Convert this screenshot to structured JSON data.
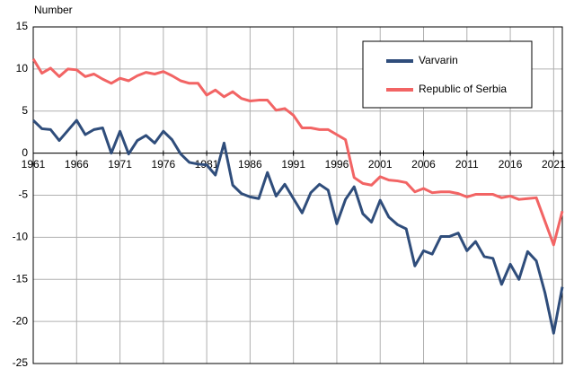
{
  "chart_data": {
    "type": "line",
    "y_label": "Number",
    "x": [
      1961,
      1962,
      1963,
      1964,
      1965,
      1966,
      1967,
      1968,
      1969,
      1970,
      1971,
      1972,
      1973,
      1974,
      1975,
      1976,
      1977,
      1978,
      1979,
      1980,
      1981,
      1982,
      1983,
      1984,
      1985,
      1986,
      1987,
      1988,
      1989,
      1990,
      1991,
      1992,
      1993,
      1994,
      1995,
      1996,
      1997,
      1998,
      1999,
      2000,
      2001,
      2002,
      2003,
      2004,
      2005,
      2006,
      2007,
      2008,
      2009,
      2010,
      2011,
      2012,
      2013,
      2014,
      2015,
      2016,
      2017,
      2018,
      2019,
      2020,
      2021,
      2022
    ],
    "series": [
      {
        "name": "Varvarin",
        "color": "#2f4d7b",
        "values": [
          3.9,
          2.9,
          2.8,
          1.5,
          2.7,
          3.9,
          2.2,
          2.8,
          3.0,
          0.0,
          2.6,
          -0.1,
          1.5,
          2.1,
          1.2,
          2.6,
          1.6,
          -0.1,
          -1.1,
          -1.3,
          -1.4,
          -2.6,
          1.2,
          -3.8,
          -4.8,
          -5.2,
          -5.4,
          -2.3,
          -5.1,
          -3.7,
          -5.4,
          -7.1,
          -4.7,
          -3.7,
          -4.4,
          -8.4,
          -5.5,
          -4.0,
          -7.2,
          -8.2,
          -5.6,
          -7.6,
          -8.5,
          -9.0,
          -13.4,
          -11.6,
          -12.0,
          -9.9,
          -9.9,
          -9.5,
          -11.6,
          -10.5,
          -12.3,
          -12.5,
          -15.6,
          -13.2,
          -15.0,
          -11.7,
          -12.8,
          -16.6,
          -21.4,
          -15.9
        ]
      },
      {
        "name": "Republic of Serbia",
        "color": "#f26464",
        "values": [
          11.2,
          9.5,
          10.1,
          9.1,
          10.0,
          9.9,
          9.1,
          9.4,
          8.8,
          8.3,
          8.9,
          8.6,
          9.2,
          9.6,
          9.4,
          9.7,
          9.2,
          8.6,
          8.3,
          8.3,
          6.9,
          7.5,
          6.7,
          7.3,
          6.5,
          6.2,
          6.3,
          6.3,
          5.1,
          5.3,
          4.5,
          3.0,
          3.0,
          2.8,
          2.8,
          2.2,
          1.6,
          -2.9,
          -3.6,
          -3.8,
          -2.8,
          -3.2,
          -3.3,
          -3.5,
          -4.6,
          -4.2,
          -4.7,
          -4.6,
          -4.6,
          -4.8,
          -5.2,
          -4.9,
          -4.9,
          -4.9,
          -5.3,
          -5.1,
          -5.5,
          -5.4,
          -5.3,
          -8.1,
          -10.9,
          -6.9
        ]
      }
    ],
    "xlim": [
      1961,
      2022
    ],
    "xticks": [
      1961,
      1966,
      1971,
      1976,
      1981,
      1986,
      1991,
      1996,
      2001,
      2006,
      2011,
      2016,
      2021
    ],
    "ylim": [
      -25,
      15
    ],
    "yticks": [
      -25,
      -20,
      -15,
      -10,
      -5,
      0,
      5,
      10,
      15
    ],
    "grid": true,
    "legend": "top-right"
  }
}
